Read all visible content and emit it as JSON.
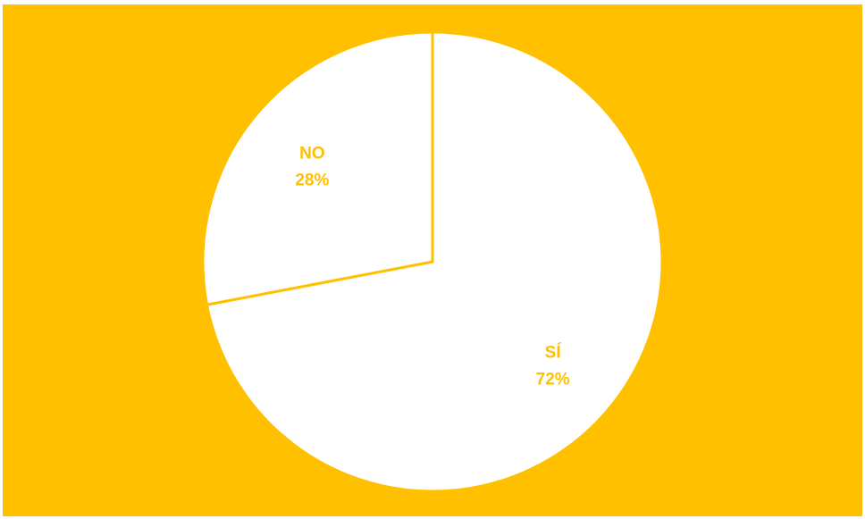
{
  "colors": {
    "background": "#FFC000",
    "slice_fill": "#FFFFFF",
    "slice_stroke": "#FFC000",
    "label": "#FFC000"
  },
  "chart_data": {
    "type": "pie",
    "title": "",
    "start_angle_deg": 0,
    "direction": "clockwise",
    "legend": "none",
    "slices": [
      {
        "label": "SÍ",
        "value": 72,
        "value_label": "72%"
      },
      {
        "label": "NO",
        "value": 28,
        "value_label": "28%"
      }
    ]
  }
}
